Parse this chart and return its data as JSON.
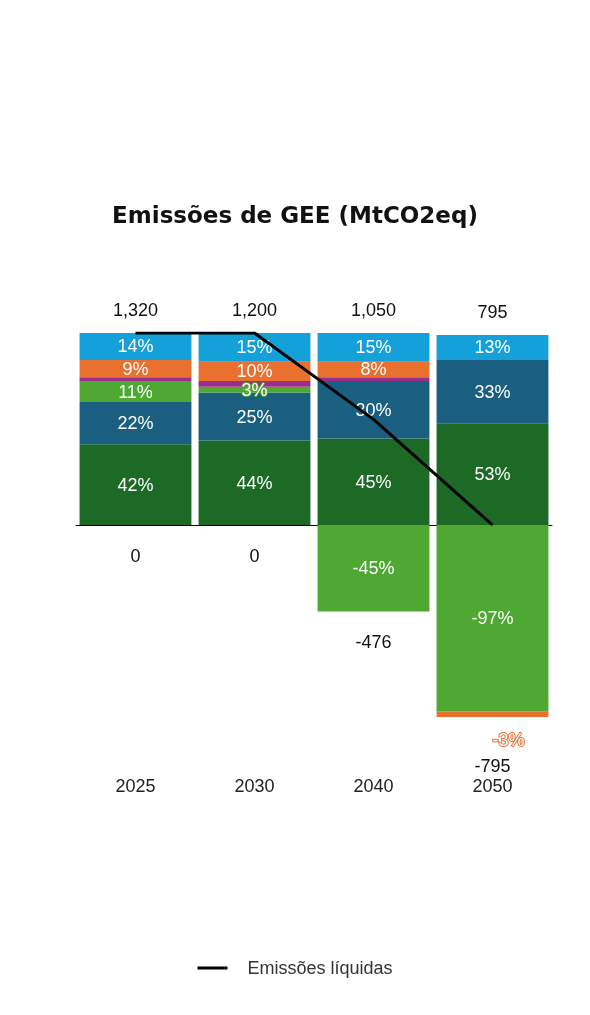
{
  "chart_data": {
    "type": "bar",
    "title": "Emissões de GEE (MtCO2eq)",
    "stacked": true,
    "categories": [
      "2025",
      "2030",
      "2040",
      "2050"
    ],
    "series": [
      {
        "color": "#1d6a27",
        "values": [
          42,
          44,
          45,
          53
        ],
        "value_labels": [
          "42%",
          "44%",
          "45%",
          "53%"
        ]
      },
      {
        "color": "#1a5f80",
        "values": [
          22,
          25,
          30,
          33
        ],
        "value_labels": [
          "22%",
          "25%",
          "30%",
          "33%"
        ]
      },
      {
        "color": "#4ea831",
        "values": [
          11,
          3,
          -45,
          -97
        ],
        "value_labels": [
          "11%",
          "3%",
          "-45%",
          "-97%"
        ]
      },
      {
        "color": "#9a2e8e",
        "values": [
          2,
          3,
          2,
          null
        ],
        "value_labels": [
          null,
          null,
          null,
          null
        ]
      },
      {
        "color": "#ea7030",
        "values": [
          9,
          10,
          8,
          -3
        ],
        "value_labels": [
          "9%",
          "10%",
          "8%",
          "-3%"
        ]
      },
      {
        "color": "#14a0d8",
        "values": [
          14,
          15,
          15,
          13
        ],
        "value_labels": [
          "14%",
          "15%",
          "15%",
          "13%"
        ]
      },
      {
        "type": "line",
        "name": "Emissões líquidas",
        "color": "#000000",
        "values": [
          100,
          100,
          55,
          0
        ]
      }
    ],
    "totals": [
      {
        "above": "1,320",
        "below": "0"
      },
      {
        "above": "1,200",
        "below": "0"
      },
      {
        "above": "1,050",
        "below": "-476"
      },
      {
        "above": "795",
        "below": "-795"
      }
    ],
    "marker": "none",
    "legend": "bottom",
    "grid": false
  }
}
